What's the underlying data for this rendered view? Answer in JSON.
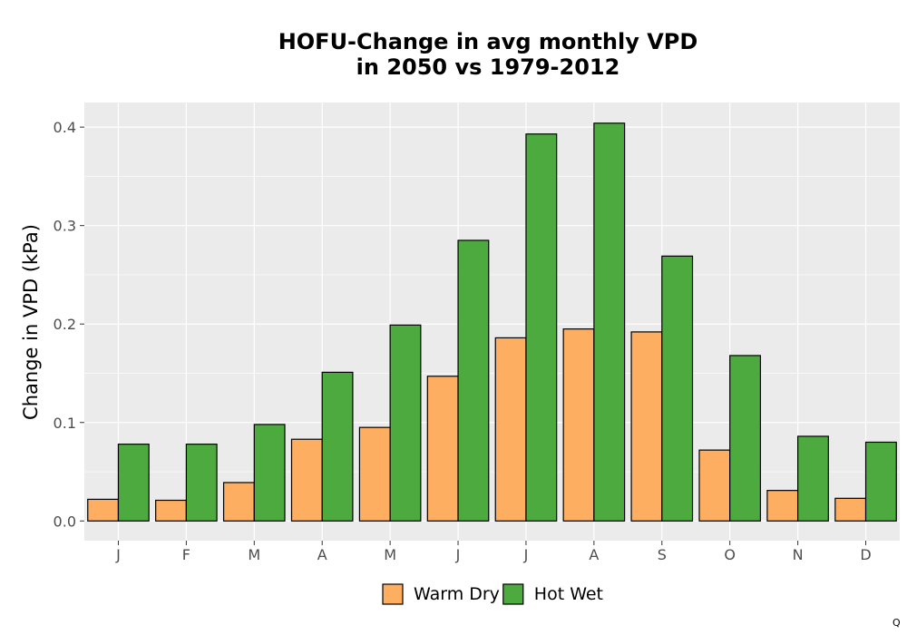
{
  "chart_data": {
    "type": "bar",
    "title_lines": [
      "HOFU-Change in avg monthly VPD",
      "in 2050 vs 1979-2012"
    ],
    "xlabel": "",
    "ylabel": "Change in VPD (kPa)",
    "categories": [
      "J",
      "F",
      "M",
      "A",
      "M",
      "J",
      "J",
      "A",
      "S",
      "O",
      "N",
      "D"
    ],
    "series": [
      {
        "name": "Warm Dry",
        "color": "#fdae61",
        "values": [
          0.022,
          0.021,
          0.039,
          0.083,
          0.095,
          0.147,
          0.186,
          0.195,
          0.192,
          0.072,
          0.031,
          0.023
        ]
      },
      {
        "name": "Hot Wet",
        "color": "#4daa3f",
        "values": [
          0.078,
          0.078,
          0.098,
          0.151,
          0.199,
          0.285,
          0.393,
          0.404,
          0.269,
          0.168,
          0.086,
          0.08
        ]
      }
    ],
    "ylim": [
      -0.02,
      0.425
    ],
    "yticks": [
      0.0,
      0.1,
      0.2,
      0.3,
      0.4
    ],
    "ytick_labels": [
      "0.0",
      "0.1",
      "0.2",
      "0.3",
      "0.4"
    ],
    "grid": true,
    "panel_color": "#ebebeb",
    "legend_position": "bottom"
  },
  "corner_mark": "Q"
}
